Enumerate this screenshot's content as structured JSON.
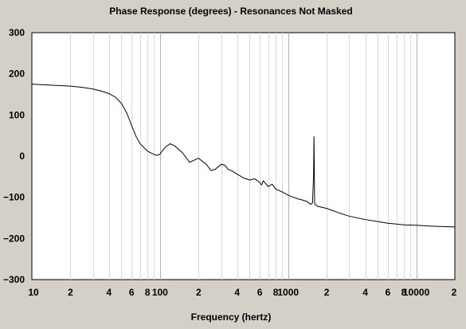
{
  "chart_data": {
    "type": "line",
    "title": "Phase Response (degrees) - Resonances Not Masked",
    "xlabel": "Frequency (hertz)",
    "ylabel": "",
    "x_scale": "log",
    "xlim": [
      10,
      20000
    ],
    "ylim": [
      -300,
      300
    ],
    "grid": true,
    "grid_axis": "x",
    "y_ticks": [
      300,
      200,
      100,
      0,
      -100,
      -200,
      -300
    ],
    "y_tick_labels": [
      "300",
      "200",
      "100",
      "0",
      "−100",
      "−200",
      "−300"
    ],
    "x_ticks": [
      10,
      20,
      40,
      60,
      80,
      100,
      200,
      400,
      600,
      800,
      1000,
      2000,
      4000,
      6000,
      8000,
      10000,
      20000
    ],
    "x_tick_labels": [
      "10",
      "2",
      "4",
      "6",
      "8",
      "100",
      "2",
      "4",
      "6",
      "8",
      "1000",
      "2",
      "4",
      "6",
      "8",
      "10000",
      "2"
    ],
    "series": [
      {
        "color": "#000000",
        "x": [
          10,
          15,
          20,
          25,
          30,
          35,
          40,
          45,
          50,
          55,
          60,
          65,
          70,
          80,
          90,
          95,
          100,
          110,
          120,
          130,
          150,
          170,
          200,
          230,
          250,
          270,
          300,
          320,
          340,
          360,
          400,
          450,
          500,
          550,
          600,
          620,
          640,
          700,
          750,
          800,
          900,
          1000,
          1100,
          1200,
          1300,
          1400,
          1500,
          1550,
          1580,
          1590,
          1600,
          1610,
          1620,
          1700,
          2000,
          2500,
          3000,
          4000,
          5000,
          6000,
          7000,
          8000,
          10000,
          13000,
          16000,
          20000
        ],
        "y": [
          175,
          172,
          170,
          167,
          163,
          158,
          152,
          143,
          128,
          105,
          75,
          48,
          30,
          12,
          4,
          2,
          5,
          22,
          30,
          25,
          8,
          -15,
          -5,
          -20,
          -35,
          -32,
          -20,
          -22,
          -32,
          -35,
          -44,
          -53,
          -58,
          -55,
          -64,
          -70,
          -60,
          -74,
          -68,
          -80,
          -87,
          -95,
          -100,
          -104,
          -107,
          -110,
          -117,
          -114,
          -45,
          48,
          -30,
          -113,
          -117,
          -122,
          -127,
          -138,
          -146,
          -154,
          -159,
          -163,
          -165,
          -167,
          -168,
          -170,
          -171,
          -172
        ]
      }
    ]
  }
}
